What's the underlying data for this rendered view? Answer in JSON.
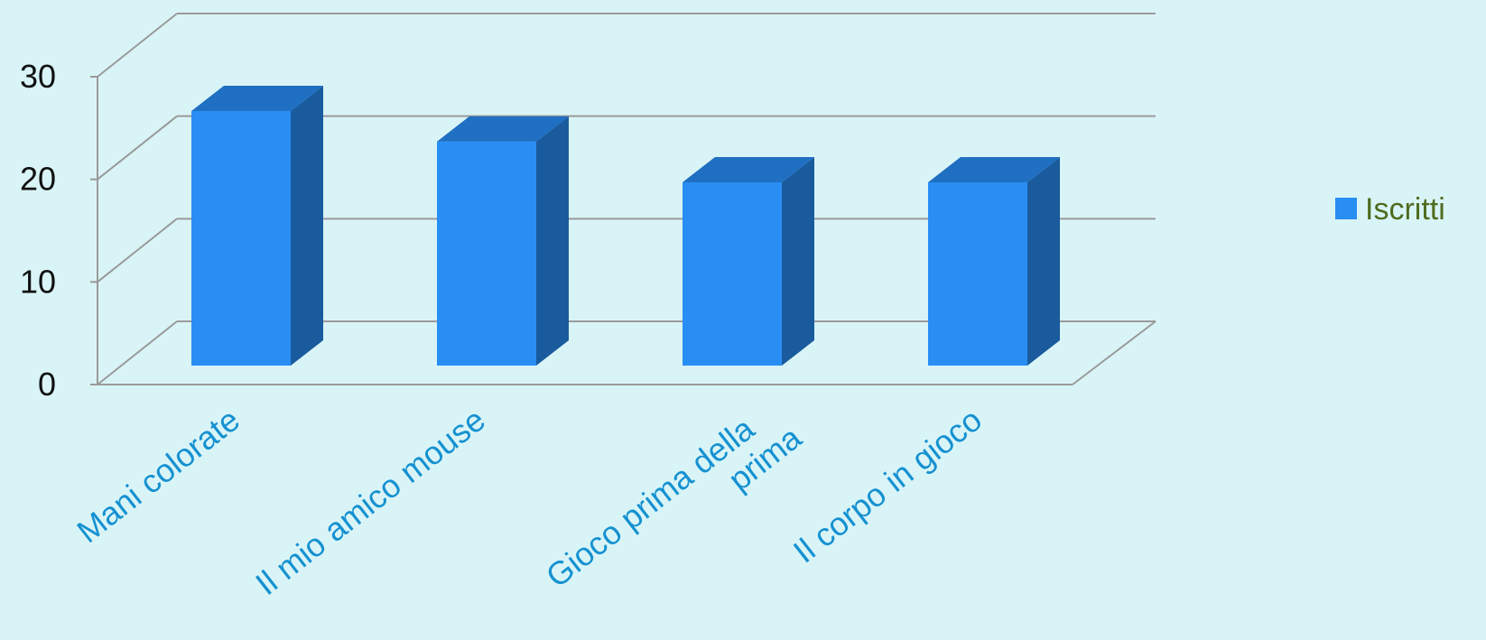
{
  "chart_data": {
    "type": "bar",
    "categories": [
      "Mani colorate",
      "Il mio amico mouse",
      "Gioco prima della prima",
      "Il corpo in gioco"
    ],
    "series": [
      {
        "name": "Iscritti",
        "values": [
          25,
          22,
          18,
          18
        ]
      }
    ],
    "yticks": [
      "0",
      "10",
      "20",
      "30"
    ],
    "ylim": [
      0,
      30
    ],
    "legend_placement": "right",
    "grid": true,
    "style": "3d",
    "colors": {
      "bar_front": "#298ef3",
      "bar_top": "#1f6fc2",
      "bar_side": "#195b9d",
      "category_label": "#1591d1",
      "legend_text": "#4f6b1f",
      "axis_text": "#111111",
      "grid": "#9a9a9a",
      "background": "#d9f4f7"
    }
  }
}
